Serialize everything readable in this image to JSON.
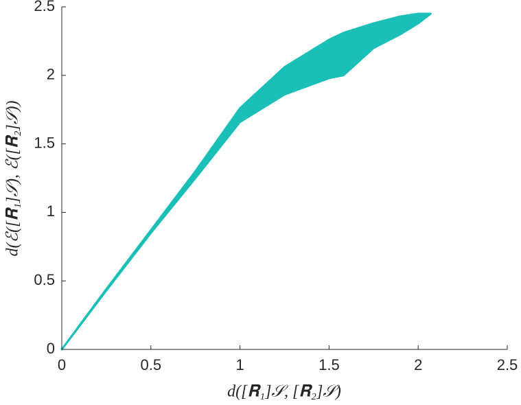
{
  "chart_data": {
    "type": "band",
    "x_label": "d([𝐑₁]𝒮, [𝐑₂]𝒮)",
    "y_label": "d(ℰ([𝐑₁]𝒮), ℰ([𝐑₂]𝒮))",
    "x": [
      0,
      0.25,
      0.5,
      0.75,
      1,
      1.25,
      1.5,
      1.58,
      1.75,
      1.9,
      2,
      2.07
    ],
    "upper": [
      0,
      0.44,
      0.87,
      1.3,
      1.76,
      2.06,
      2.26,
      2.31,
      2.38,
      2.43,
      2.45,
      2.45
    ],
    "lower": [
      0,
      0.43,
      0.85,
      1.25,
      1.66,
      1.86,
      1.98,
      2.0,
      2.2,
      2.3,
      2.38,
      2.45
    ],
    "color": "#1abfb7",
    "xlim": [
      0,
      2.5
    ],
    "ylim": [
      0,
      2.5
    ],
    "xticks": [
      0,
      0.5,
      1,
      1.5,
      2,
      2.5
    ],
    "yticks": [
      0,
      0.5,
      1,
      1.5,
      2,
      2.5
    ]
  }
}
